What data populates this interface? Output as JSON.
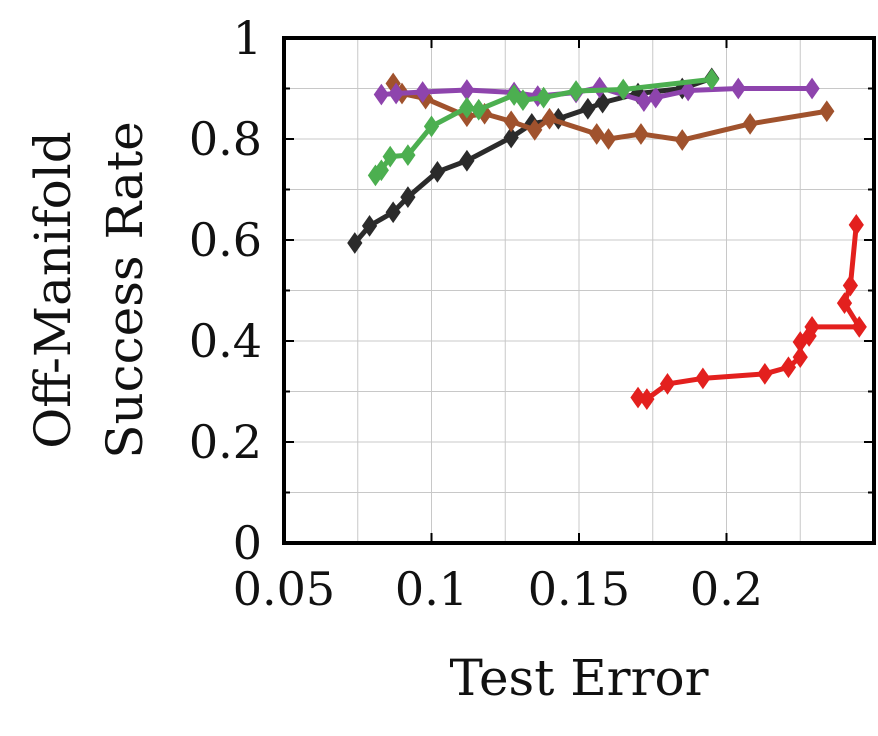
{
  "chart_data": {
    "type": "line",
    "xlabel": "Test Error",
    "ylabel": [
      "Off-Manifold",
      "Success Rate"
    ],
    "xlim": [
      0.05,
      0.25
    ],
    "ylim": [
      0,
      1
    ],
    "xticks": [
      0.05,
      0.1,
      0.15,
      0.2
    ],
    "xtick_labels": [
      "0.05",
      "0.1",
      "0.15",
      "0.2"
    ],
    "yticks": [
      0,
      0.2,
      0.4,
      0.6,
      0.8,
      1
    ],
    "ytick_labels": [
      "0",
      "0.2",
      "0.4",
      "0.6",
      "0.8",
      "1"
    ],
    "grid": true,
    "marker": "diamond",
    "series": [
      {
        "color": "#e3201e",
        "points": [
          [
            0.17,
            0.288
          ],
          [
            0.173,
            0.285
          ],
          [
            0.18,
            0.315
          ],
          [
            0.192,
            0.326
          ],
          [
            0.213,
            0.335
          ],
          [
            0.221,
            0.348
          ],
          [
            0.225,
            0.368
          ],
          [
            0.225,
            0.398
          ],
          [
            0.228,
            0.41
          ],
          [
            0.229,
            0.428
          ],
          [
            0.245,
            0.428
          ],
          [
            0.24,
            0.475
          ],
          [
            0.242,
            0.51
          ],
          [
            0.244,
            0.63
          ]
        ]
      },
      {
        "color": "#2b2b2b",
        "points": [
          [
            0.074,
            0.594
          ],
          [
            0.079,
            0.628
          ],
          [
            0.087,
            0.655
          ],
          [
            0.092,
            0.685
          ],
          [
            0.102,
            0.735
          ],
          [
            0.112,
            0.757
          ],
          [
            0.127,
            0.803
          ],
          [
            0.134,
            0.83
          ],
          [
            0.143,
            0.84
          ],
          [
            0.153,
            0.86
          ],
          [
            0.158,
            0.872
          ],
          [
            0.17,
            0.89
          ],
          [
            0.185,
            0.9
          ],
          [
            0.195,
            0.92
          ]
        ]
      },
      {
        "color": "#a0522d",
        "points": [
          [
            0.087,
            0.91
          ],
          [
            0.09,
            0.89
          ],
          [
            0.098,
            0.88
          ],
          [
            0.112,
            0.845
          ],
          [
            0.118,
            0.85
          ],
          [
            0.127,
            0.835
          ],
          [
            0.135,
            0.818
          ],
          [
            0.14,
            0.84
          ],
          [
            0.156,
            0.81
          ],
          [
            0.16,
            0.8
          ],
          [
            0.171,
            0.81
          ],
          [
            0.185,
            0.798
          ],
          [
            0.208,
            0.83
          ],
          [
            0.234,
            0.855
          ]
        ]
      },
      {
        "color": "#8e44ad",
        "points": [
          [
            0.083,
            0.888
          ],
          [
            0.088,
            0.89
          ],
          [
            0.097,
            0.893
          ],
          [
            0.112,
            0.897
          ],
          [
            0.128,
            0.892
          ],
          [
            0.136,
            0.885
          ],
          [
            0.149,
            0.892
          ],
          [
            0.157,
            0.902
          ],
          [
            0.172,
            0.875
          ],
          [
            0.176,
            0.882
          ],
          [
            0.187,
            0.896
          ],
          [
            0.204,
            0.9
          ],
          [
            0.229,
            0.9
          ]
        ]
      },
      {
        "color": "#4caf50",
        "points": [
          [
            0.081,
            0.728
          ],
          [
            0.083,
            0.738
          ],
          [
            0.086,
            0.765
          ],
          [
            0.092,
            0.768
          ],
          [
            0.1,
            0.825
          ],
          [
            0.112,
            0.862
          ],
          [
            0.116,
            0.858
          ],
          [
            0.128,
            0.887
          ],
          [
            0.131,
            0.877
          ],
          [
            0.138,
            0.882
          ],
          [
            0.149,
            0.895
          ],
          [
            0.165,
            0.898
          ],
          [
            0.195,
            0.918
          ]
        ]
      }
    ]
  }
}
